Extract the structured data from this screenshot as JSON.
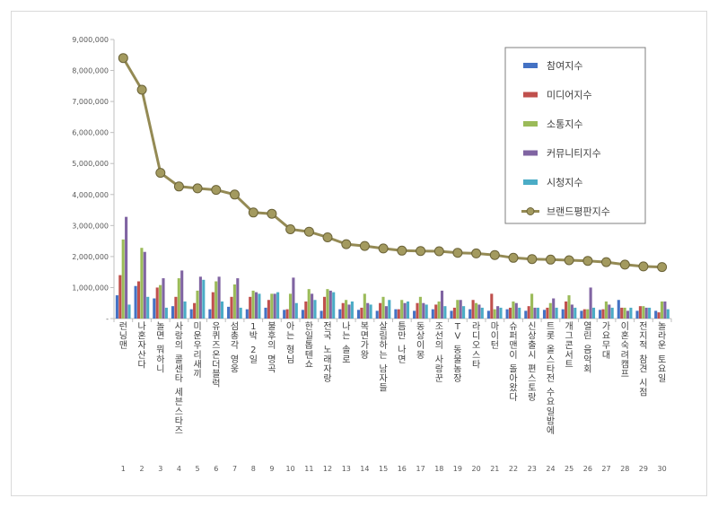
{
  "chart_data": {
    "type": "bar",
    "ylim": [
      0,
      9000000
    ],
    "y_ticks": [
      "9,000,000",
      "8,000,000",
      "7,000,000",
      "6,000,000",
      "5,000,000",
      "4,000,000",
      "3,000,000",
      "2,000,000",
      "1,000,000",
      "-"
    ],
    "ranks": [
      "1",
      "2",
      "3",
      "4",
      "5",
      "6",
      "7",
      "8",
      "9",
      "10",
      "11",
      "12",
      "13",
      "14",
      "15",
      "16",
      "17",
      "18",
      "19",
      "20",
      "21",
      "22",
      "23",
      "24",
      "25",
      "26",
      "27",
      "28",
      "29",
      "30"
    ],
    "categories": [
      "런닝맨",
      "나혼자산다",
      "놀면 뭐하니",
      "사랑의 콜센타 세븐스타즈",
      "미운우리새끼",
      "유퀴즈온더블럭",
      "섬총각 영웅",
      "1박 2일",
      "불후의 명곡",
      "아는 형님",
      "한일톱텐쇼",
      "전국 노래자랑",
      "나는 솔로",
      "복면가왕",
      "살림하는 남자들",
      "틈만 나면",
      "동상이몽",
      "조선의 사랑꾼",
      "TV 동물농장",
      "라디오스타",
      "마이턴",
      "슈퍼맨이 돌아왔다",
      "신상출시 편스토랑",
      "트롯 올스타전 수요일밤에",
      "개그콘서트",
      "열린 음악회",
      "가요무대",
      "이혼숙려캠프",
      "전지적 참견 시점",
      "놀라운 토요일"
    ],
    "series": [
      {
        "name": "참여지수",
        "type": "bar",
        "color": "#4472c4",
        "values": [
          750000,
          1050000,
          650000,
          400000,
          300000,
          300000,
          380000,
          300000,
          350000,
          280000,
          280000,
          250000,
          300000,
          280000,
          250000,
          300000,
          250000,
          300000,
          250000,
          300000,
          250000,
          300000,
          250000,
          280000,
          300000,
          250000,
          280000,
          600000,
          250000,
          250000
        ]
      },
      {
        "name": "미디어지수",
        "type": "bar",
        "color": "#c0504d",
        "values": [
          1400000,
          1200000,
          1000000,
          700000,
          500000,
          850000,
          700000,
          700000,
          600000,
          300000,
          550000,
          700000,
          500000,
          350000,
          500000,
          300000,
          500000,
          450000,
          350000,
          600000,
          800000,
          350000,
          400000,
          350000,
          550000,
          300000,
          300000,
          350000,
          400000,
          200000
        ]
      },
      {
        "name": "소통지수",
        "type": "bar",
        "color": "#9bbb59",
        "values": [
          2550000,
          2280000,
          1080000,
          1300000,
          900000,
          1200000,
          1100000,
          900000,
          800000,
          800000,
          950000,
          950000,
          600000,
          800000,
          700000,
          600000,
          700000,
          550000,
          600000,
          500000,
          300000,
          550000,
          800000,
          500000,
          750000,
          300000,
          550000,
          350000,
          400000,
          550000
        ]
      },
      {
        "name": "커뮤니티지수",
        "type": "bar",
        "color": "#8064a2",
        "values": [
          3280000,
          2150000,
          1300000,
          1550000,
          1350000,
          1350000,
          1300000,
          850000,
          800000,
          1320000,
          800000,
          900000,
          450000,
          500000,
          400000,
          500000,
          500000,
          900000,
          600000,
          450000,
          400000,
          500000,
          350000,
          650000,
          450000,
          1000000,
          450000,
          250000,
          350000,
          550000
        ]
      },
      {
        "name": "시청지수",
        "type": "bar",
        "color": "#4bacc6",
        "values": [
          450000,
          700000,
          350000,
          550000,
          1250000,
          550000,
          350000,
          800000,
          850000,
          500000,
          600000,
          850000,
          550000,
          450000,
          600000,
          550000,
          450000,
          400000,
          400000,
          350000,
          350000,
          350000,
          350000,
          350000,
          350000,
          350000,
          350000,
          350000,
          350000,
          300000
        ]
      },
      {
        "name": "브랜드평판지수",
        "type": "line",
        "color": "#948a54",
        "values": [
          8400000,
          7380000,
          4700000,
          4260000,
          4200000,
          4150000,
          4000000,
          3420000,
          3380000,
          2880000,
          2800000,
          2620000,
          2400000,
          2340000,
          2260000,
          2190000,
          2180000,
          2170000,
          2120000,
          2100000,
          2050000,
          1960000,
          1920000,
          1900000,
          1880000,
          1860000,
          1820000,
          1740000,
          1680000,
          1660000
        ]
      }
    ],
    "legend_position": "top-right",
    "grid": false
  }
}
